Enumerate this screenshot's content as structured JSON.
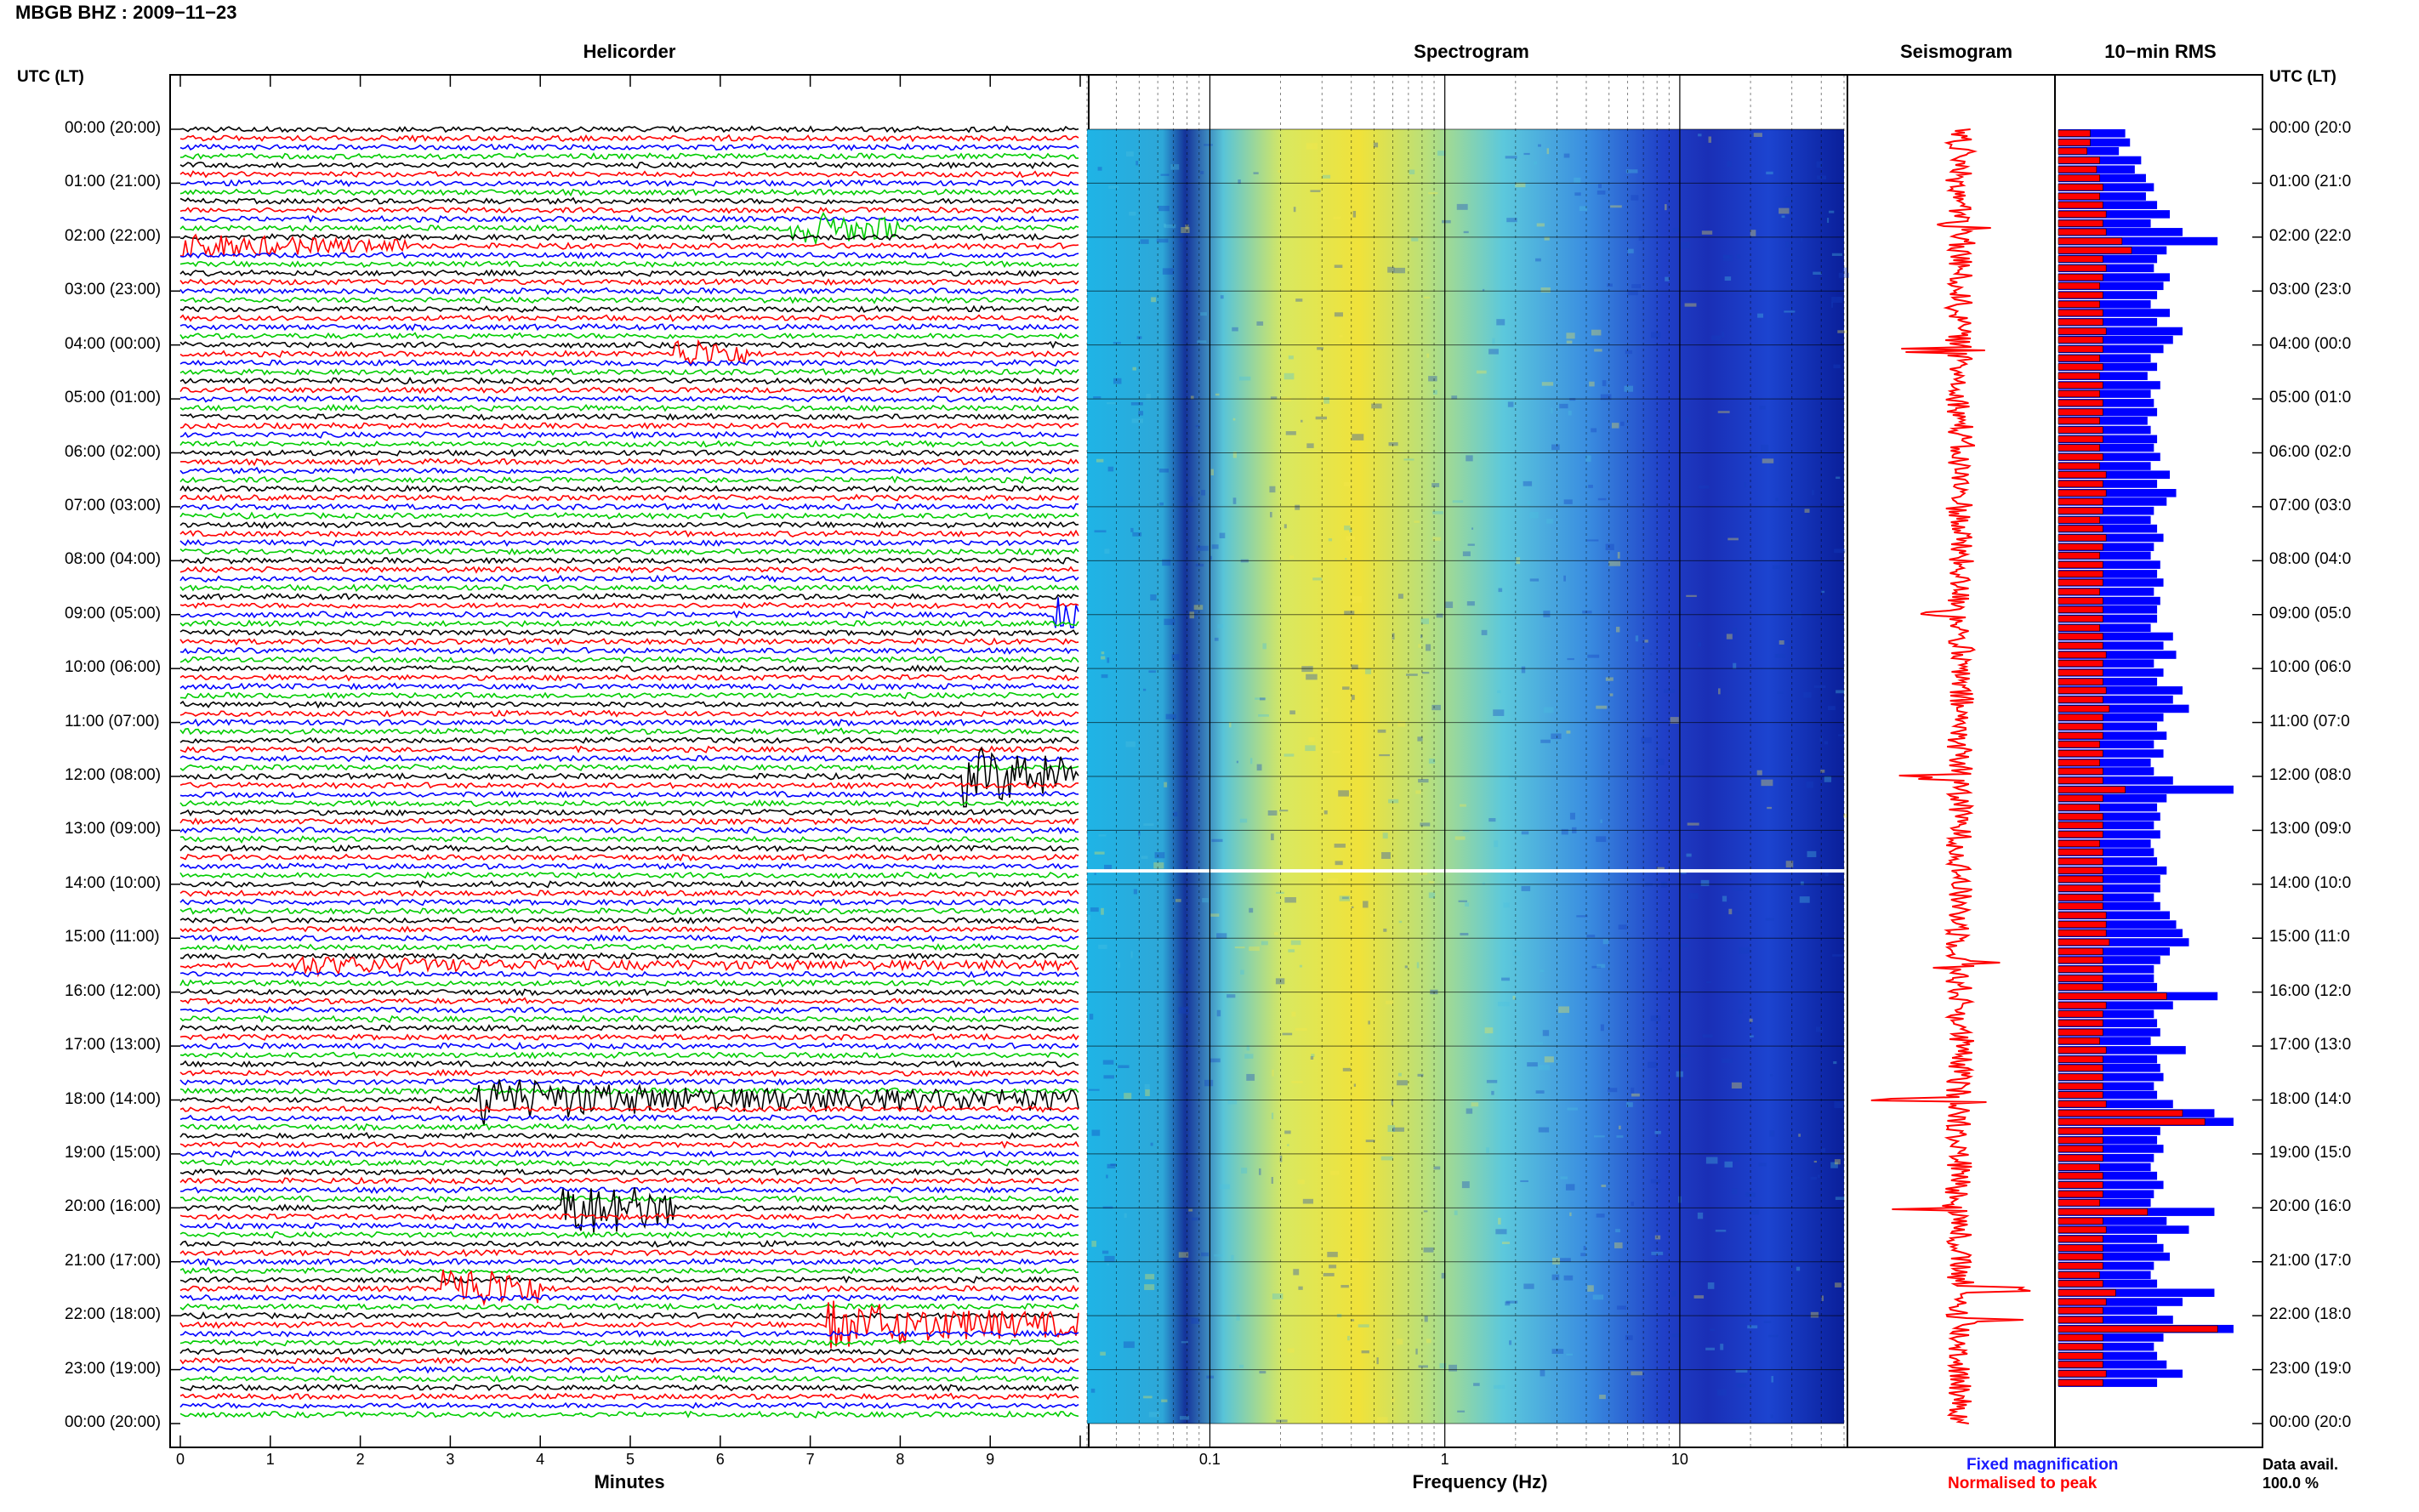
{
  "header": {
    "title": "MBGB BHZ : 2009−11−23",
    "utc_left": "UTC (LT)",
    "utc_right": "UTC (LT)"
  },
  "panels": {
    "helicorder": "Helicorder",
    "spectrogram": "Spectrogram",
    "seismogram": "Seismogram",
    "rms": "10−min RMS"
  },
  "axes": {
    "helicorder_xlabel": "Minutes",
    "spectrogram_xlabel": "Frequency (Hz)",
    "minute_ticks": [
      "0",
      "1",
      "2",
      "3",
      "4",
      "5",
      "6",
      "7",
      "8",
      "9"
    ],
    "freq_ticks": [
      "0.1",
      "1",
      "10"
    ]
  },
  "legend": {
    "fixed": "Fixed magnification",
    "normalised": "Normalised to peak",
    "data_avail_label": "Data avail.",
    "data_avail_value": "100.0 %"
  },
  "colors": {
    "trace_cycle": [
      "#000000",
      "#ff0000",
      "#0000ff",
      "#00cc00"
    ],
    "rms_fixed": "#0000ff",
    "rms_normalised": "#ff0000",
    "seismogram": "#ff0000"
  },
  "chart_data": {
    "type": "helicorder",
    "time_labels_left": [
      "00:00 (20:00)",
      "01:00 (21:00)",
      "02:00 (22:00)",
      "03:00 (23:00)",
      "04:00 (00:00)",
      "05:00 (01:00)",
      "06:00 (02:00)",
      "07:00 (03:00)",
      "08:00 (04:00)",
      "09:00 (05:00)",
      "10:00 (06:00)",
      "11:00 (07:00)",
      "12:00 (08:00)",
      "13:00 (09:00)",
      "14:00 (10:00)",
      "15:00 (11:00)",
      "16:00 (12:00)",
      "17:00 (13:00)",
      "18:00 (14:00)",
      "19:00 (15:00)",
      "20:00 (16:00)",
      "21:00 (17:00)",
      "22:00 (18:00)",
      "23:00 (19:00)",
      "00:00 (20:00)"
    ],
    "time_labels_right": [
      "00:00 (20:0",
      "01:00 (21:0",
      "02:00 (22:0",
      "03:00 (23:0",
      "04:00 (00:0",
      "05:00 (01:0",
      "06:00 (02:0",
      "07:00 (03:0",
      "08:00 (04:0",
      "09:00 (05:0",
      "10:00 (06:0",
      "11:00 (07:0",
      "12:00 (08:0",
      "13:00 (09:0",
      "14:00 (10:0",
      "15:00 (11:0",
      "16:00 (12:0",
      "17:00 (13:0",
      "18:00 (14:0",
      "19:00 (15:0",
      "20:00 (16:0",
      "21:00 (17:0",
      "22:00 (18:0",
      "23:00 (19:0",
      "00:00 (20:0"
    ],
    "helicorder_xlim": [
      0,
      10
    ],
    "rows_per_hour": 6,
    "events": [
      {
        "hour": 1.8,
        "minute_start": 6.8,
        "minute_end": 8.0,
        "amp": 2.0
      },
      {
        "hour": 2.1,
        "minute_start": 0.0,
        "minute_end": 2.5,
        "amp": 1.6
      },
      {
        "hour": 4.1,
        "minute_start": 5.5,
        "minute_end": 6.3,
        "amp": 1.8
      },
      {
        "hour": 9.0,
        "minute_start": 9.7,
        "minute_end": 10.0,
        "amp": 2.0
      },
      {
        "hour": 12.0,
        "minute_start": 8.7,
        "minute_end": 10.0,
        "amp": 3.5
      },
      {
        "hour": 15.5,
        "minute_start": 1.2,
        "minute_end": 10.0,
        "amp": 1.3
      },
      {
        "hour": 18.0,
        "minute_start": 3.3,
        "minute_end": 10.0,
        "amp": 3.0
      },
      {
        "hour": 20.0,
        "minute_start": 4.2,
        "minute_end": 5.5,
        "amp": 3.5
      },
      {
        "hour": 21.5,
        "minute_start": 2.9,
        "minute_end": 4.0,
        "amp": 2.8
      },
      {
        "hour": 22.1,
        "minute_start": 7.2,
        "minute_end": 10.0,
        "amp": 3.0
      }
    ],
    "spectrogram_xlim_hz": [
      0.03,
      50
    ],
    "spectrogram_xscale": "log",
    "rms_hours": [
      0,
      0.17,
      0.33,
      0.5,
      0.67,
      0.83,
      1,
      1.17,
      1.33,
      1.5,
      1.67,
      1.83,
      2,
      2.17,
      2.33,
      2.5,
      2.67,
      2.83,
      3,
      3.17,
      3.33,
      3.5,
      3.67,
      3.83,
      4,
      4.17,
      4.33,
      4.5,
      4.67,
      4.83,
      5,
      5.17,
      5.33,
      5.5,
      5.67,
      5.83,
      6,
      6.17,
      6.33,
      6.5,
      6.67,
      6.83,
      7,
      7.17,
      7.33,
      7.5,
      7.67,
      7.83,
      8,
      8.17,
      8.33,
      8.5,
      8.67,
      8.83,
      9,
      9.17,
      9.33,
      9.5,
      9.67,
      9.83,
      10,
      10.17,
      10.33,
      10.5,
      10.67,
      10.83,
      11,
      11.17,
      11.33,
      11.5,
      11.67,
      11.83,
      12,
      12.17,
      12.33,
      12.5,
      12.67,
      12.83,
      13,
      13.17,
      13.33,
      13.5,
      13.67,
      13.83,
      14,
      14.17,
      14.33,
      14.5,
      14.67,
      14.83,
      15,
      15.17,
      15.33,
      15.5,
      15.67,
      15.83,
      16,
      16.17,
      16.33,
      16.5,
      16.67,
      16.83,
      17,
      17.17,
      17.33,
      17.5,
      17.67,
      17.83,
      18,
      18.17,
      18.33,
      18.5,
      18.67,
      18.83,
      19,
      19.17,
      19.33,
      19.5,
      19.67,
      19.83,
      20,
      20.17,
      20.33,
      20.5,
      20.67,
      20.83,
      21,
      21.17,
      21.33,
      21.5,
      21.67,
      21.83,
      22,
      22.17,
      22.33,
      22.5,
      22.67,
      22.83,
      23,
      23.17,
      23.33,
      23.5,
      23.67,
      23.83
    ],
    "rms_fixed": [
      0.42,
      0.45,
      0.38,
      0.52,
      0.48,
      0.55,
      0.6,
      0.55,
      0.62,
      0.7,
      0.58,
      0.78,
      1.0,
      0.68,
      0.62,
      0.6,
      0.7,
      0.66,
      0.62,
      0.58,
      0.7,
      0.62,
      0.78,
      0.72,
      0.66,
      0.58,
      0.62,
      0.56,
      0.64,
      0.58,
      0.6,
      0.62,
      0.56,
      0.58,
      0.62,
      0.6,
      0.64,
      0.58,
      0.7,
      0.62,
      0.74,
      0.68,
      0.6,
      0.58,
      0.62,
      0.66,
      0.6,
      0.58,
      0.64,
      0.62,
      0.66,
      0.6,
      0.64,
      0.62,
      0.62,
      0.58,
      0.72,
      0.66,
      0.74,
      0.6,
      0.66,
      0.62,
      0.78,
      0.72,
      0.82,
      0.66,
      0.62,
      0.68,
      0.6,
      0.66,
      0.58,
      0.6,
      0.72,
      1.1,
      0.68,
      0.62,
      0.64,
      0.6,
      0.64,
      0.58,
      0.6,
      0.62,
      0.68,
      0.64,
      0.64,
      0.6,
      0.64,
      0.7,
      0.74,
      0.78,
      0.82,
      0.7,
      0.64,
      0.6,
      0.6,
      0.62,
      1.0,
      0.72,
      0.6,
      0.62,
      0.64,
      0.58,
      0.8,
      0.62,
      0.64,
      0.66,
      0.6,
      0.62,
      0.72,
      0.98,
      1.1,
      0.64,
      0.62,
      0.66,
      0.6,
      0.58,
      0.62,
      0.66,
      0.6,
      0.58,
      0.98,
      0.68,
      0.82,
      0.62,
      0.66,
      0.7,
      0.6,
      0.58,
      0.62,
      0.98,
      0.78,
      0.62,
      0.72,
      1.1,
      0.66,
      0.6,
      0.62,
      0.68,
      0.78,
      0.62
    ],
    "rms_normalised": [
      0.2,
      0.2,
      0.18,
      0.26,
      0.24,
      0.26,
      0.28,
      0.26,
      0.28,
      0.3,
      0.28,
      0.3,
      0.4,
      0.46,
      0.28,
      0.3,
      0.28,
      0.26,
      0.28,
      0.26,
      0.28,
      0.28,
      0.3,
      0.28,
      0.28,
      0.26,
      0.28,
      0.26,
      0.28,
      0.26,
      0.28,
      0.28,
      0.26,
      0.28,
      0.28,
      0.26,
      0.28,
      0.26,
      0.3,
      0.28,
      0.3,
      0.28,
      0.28,
      0.26,
      0.28,
      0.3,
      0.28,
      0.26,
      0.28,
      0.28,
      0.28,
      0.26,
      0.28,
      0.28,
      0.28,
      0.26,
      0.28,
      0.28,
      0.3,
      0.28,
      0.28,
      0.28,
      0.3,
      0.28,
      0.32,
      0.28,
      0.28,
      0.28,
      0.26,
      0.28,
      0.26,
      0.28,
      0.28,
      0.42,
      0.28,
      0.26,
      0.28,
      0.28,
      0.28,
      0.26,
      0.28,
      0.28,
      0.28,
      0.28,
      0.28,
      0.28,
      0.28,
      0.3,
      0.3,
      0.3,
      0.32,
      0.28,
      0.28,
      0.28,
      0.28,
      0.28,
      0.68,
      0.3,
      0.28,
      0.28,
      0.28,
      0.26,
      0.3,
      0.28,
      0.28,
      0.28,
      0.28,
      0.28,
      0.3,
      0.78,
      0.92,
      0.28,
      0.28,
      0.28,
      0.28,
      0.26,
      0.28,
      0.28,
      0.28,
      0.26,
      0.56,
      0.28,
      0.3,
      0.28,
      0.28,
      0.28,
      0.28,
      0.26,
      0.28,
      0.36,
      0.3,
      0.28,
      0.28,
      1.0,
      0.28,
      0.28,
      0.28,
      0.28,
      0.3,
      0.28
    ]
  }
}
